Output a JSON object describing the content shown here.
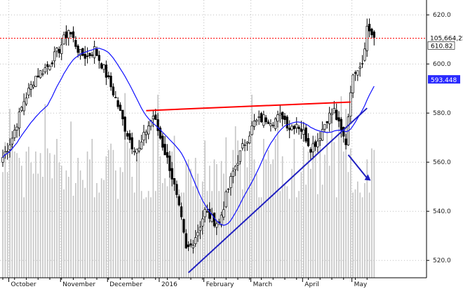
{
  "chart_data": {
    "type": "candlestick",
    "y_ticks": [
      "520.0",
      "540.0",
      "560.0",
      "580.0",
      "600.0",
      "620.0"
    ],
    "ylim": [
      512,
      624
    ],
    "months": [
      "October",
      "November",
      "December",
      "2016",
      "February",
      "March",
      "April",
      "May"
    ],
    "last_price_label": "610.82",
    "volume_label": "105,664,25",
    "ma_label": "593.448",
    "resistance_level": 610.5,
    "series": {
      "candles": [],
      "moving_average": [],
      "volume": []
    },
    "annotations": {
      "red_trendline": {
        "from": [
          "2015-12-23",
          581
        ],
        "to": [
          "2016-04-29",
          584.5
        ]
      },
      "blue_trendline": {
        "from": [
          "2016-01-21",
          515
        ],
        "to": [
          "2016-05-10",
          582
        ]
      },
      "arrow": {
        "from": [
          "2016-04-28",
          563
        ],
        "to": [
          "2016-05-06",
          552.5
        ]
      }
    },
    "colors": {
      "candle_up": "#ffffff",
      "candle_down": "#000000",
      "moving_average": "#1010ff",
      "volume": "#c4c4c4",
      "red_line": "#ff0000",
      "blue_line": "#2020c0",
      "price_tag": "#ffffff",
      "ma_tag": "#2a2aff",
      "grid": "#bfbfbf"
    }
  }
}
